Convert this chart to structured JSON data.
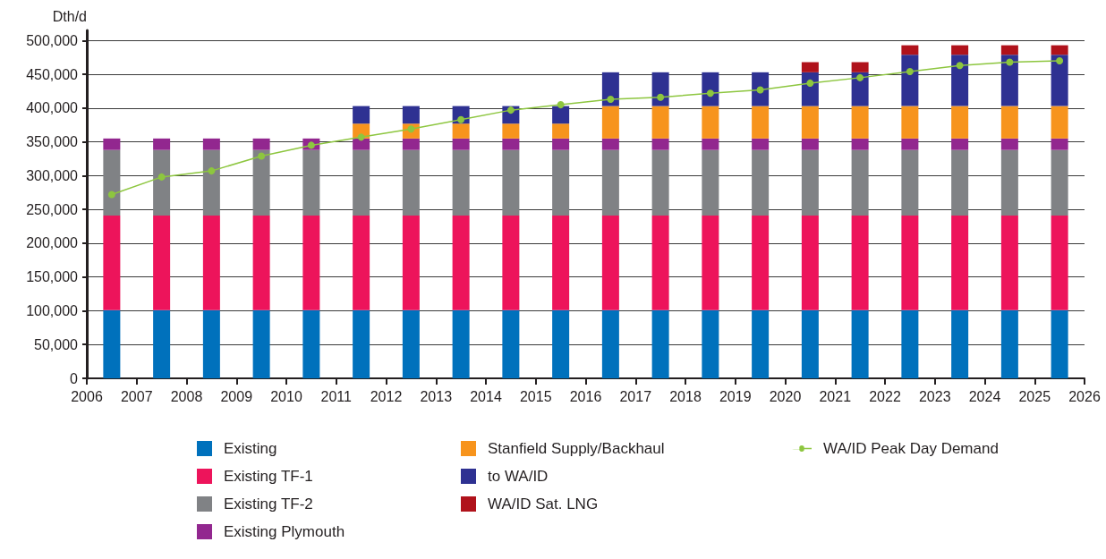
{
  "chart_data": {
    "type": "bar",
    "ylabel": "Dth/d",
    "stacked": true,
    "grid": "y",
    "legend": "bottom",
    "marker": "circle",
    "x": [
      2006.5,
      2007.5,
      2008.5,
      2009.5,
      2010.5,
      2011.5,
      2012.5,
      2013.5,
      2014.5,
      2015.5,
      2016.5,
      2017.5,
      2018.5,
      2019.5,
      2020.5,
      2021.5,
      2022.5,
      2023.5,
      2024.5,
      2025.5
    ],
    "xlim": [
      2006,
      2026
    ],
    "xticks": [
      2006,
      2007,
      2008,
      2009,
      2010,
      2011,
      2012,
      2013,
      2014,
      2015,
      2016,
      2017,
      2018,
      2019,
      2020,
      2021,
      2022,
      2023,
      2024,
      2025,
      2026
    ],
    "ylim": [
      0,
      515000
    ],
    "yticks": [
      0,
      {
        "value": 50000,
        "label": "50,000"
      },
      {
        "value": 100000,
        "label": "100,000"
      },
      {
        "value": 150000,
        "label": "150,000"
      },
      {
        "value": 200000,
        "label": "200,000"
      },
      {
        "value": 250000,
        "label": "250,000"
      },
      {
        "value": 300000,
        "label": "300,000"
      },
      {
        "value": 350000,
        "label": "350,000"
      },
      {
        "value": 400000,
        "label": "400,000"
      },
      {
        "value": 450000,
        "label": "450,000"
      },
      {
        "value": 500000,
        "label": "500,000"
      }
    ],
    "series": [
      {
        "name": "Existing",
        "color": "#0071bc",
        "values": [
          101000,
          101000,
          101000,
          101000,
          101000,
          101000,
          101000,
          101000,
          101000,
          101000,
          101000,
          101000,
          101000,
          101000,
          101000,
          101000,
          101000,
          101000,
          101000,
          101000
        ]
      },
      {
        "name": "Existing TF-1",
        "color": "#ed145b",
        "values": [
          140000,
          140000,
          140000,
          140000,
          140000,
          140000,
          140000,
          140000,
          140000,
          140000,
          140000,
          140000,
          140000,
          140000,
          140000,
          140000,
          140000,
          140000,
          140000,
          140000
        ]
      },
      {
        "name": "Existing TF-2",
        "color": "#808285",
        "values": [
          97000,
          97000,
          97000,
          97000,
          97000,
          97000,
          97000,
          97000,
          97000,
          97000,
          97000,
          97000,
          97000,
          97000,
          97000,
          97000,
          97000,
          97000,
          97000,
          97000
        ]
      },
      {
        "name": "Existing Plymouth",
        "color": "#92278f",
        "values": [
          17000,
          17000,
          17000,
          17000,
          17000,
          17000,
          17000,
          17000,
          17000,
          17000,
          17000,
          17000,
          17000,
          17000,
          17000,
          17000,
          17000,
          17000,
          17000,
          17000
        ]
      },
      {
        "name": "Stanfield Supply/Backhaul",
        "color": "#f7941d",
        "values": [
          null,
          null,
          null,
          null,
          null,
          22000,
          22000,
          22000,
          22000,
          22000,
          48000,
          48000,
          48000,
          48000,
          48000,
          48000,
          48000,
          48000,
          48000,
          48000
        ]
      },
      {
        "name": "to WA/ID",
        "color": "#2e3192",
        "values": [
          null,
          null,
          null,
          null,
          null,
          26000,
          26000,
          26000,
          26000,
          26000,
          50000,
          50000,
          50000,
          50000,
          50000,
          50000,
          76000,
          76000,
          76000,
          76000
        ]
      },
      {
        "name": "WA/ID Sat. LNG",
        "color": "#b0121b",
        "values": [
          null,
          null,
          null,
          null,
          null,
          null,
          null,
          null,
          null,
          null,
          null,
          null,
          null,
          null,
          15000,
          15000,
          14000,
          14000,
          14000,
          14000
        ]
      },
      {
        "name": "WA/ID Peak Day Demand",
        "type": "line",
        "color": "#8dc63f",
        "values": [
          272000,
          298000,
          307000,
          329000,
          345000,
          357000,
          369000,
          383000,
          397000,
          405000,
          413000,
          416000,
          422000,
          427000,
          437000,
          445000,
          454000,
          463000,
          468000,
          470000
        ]
      }
    ]
  }
}
